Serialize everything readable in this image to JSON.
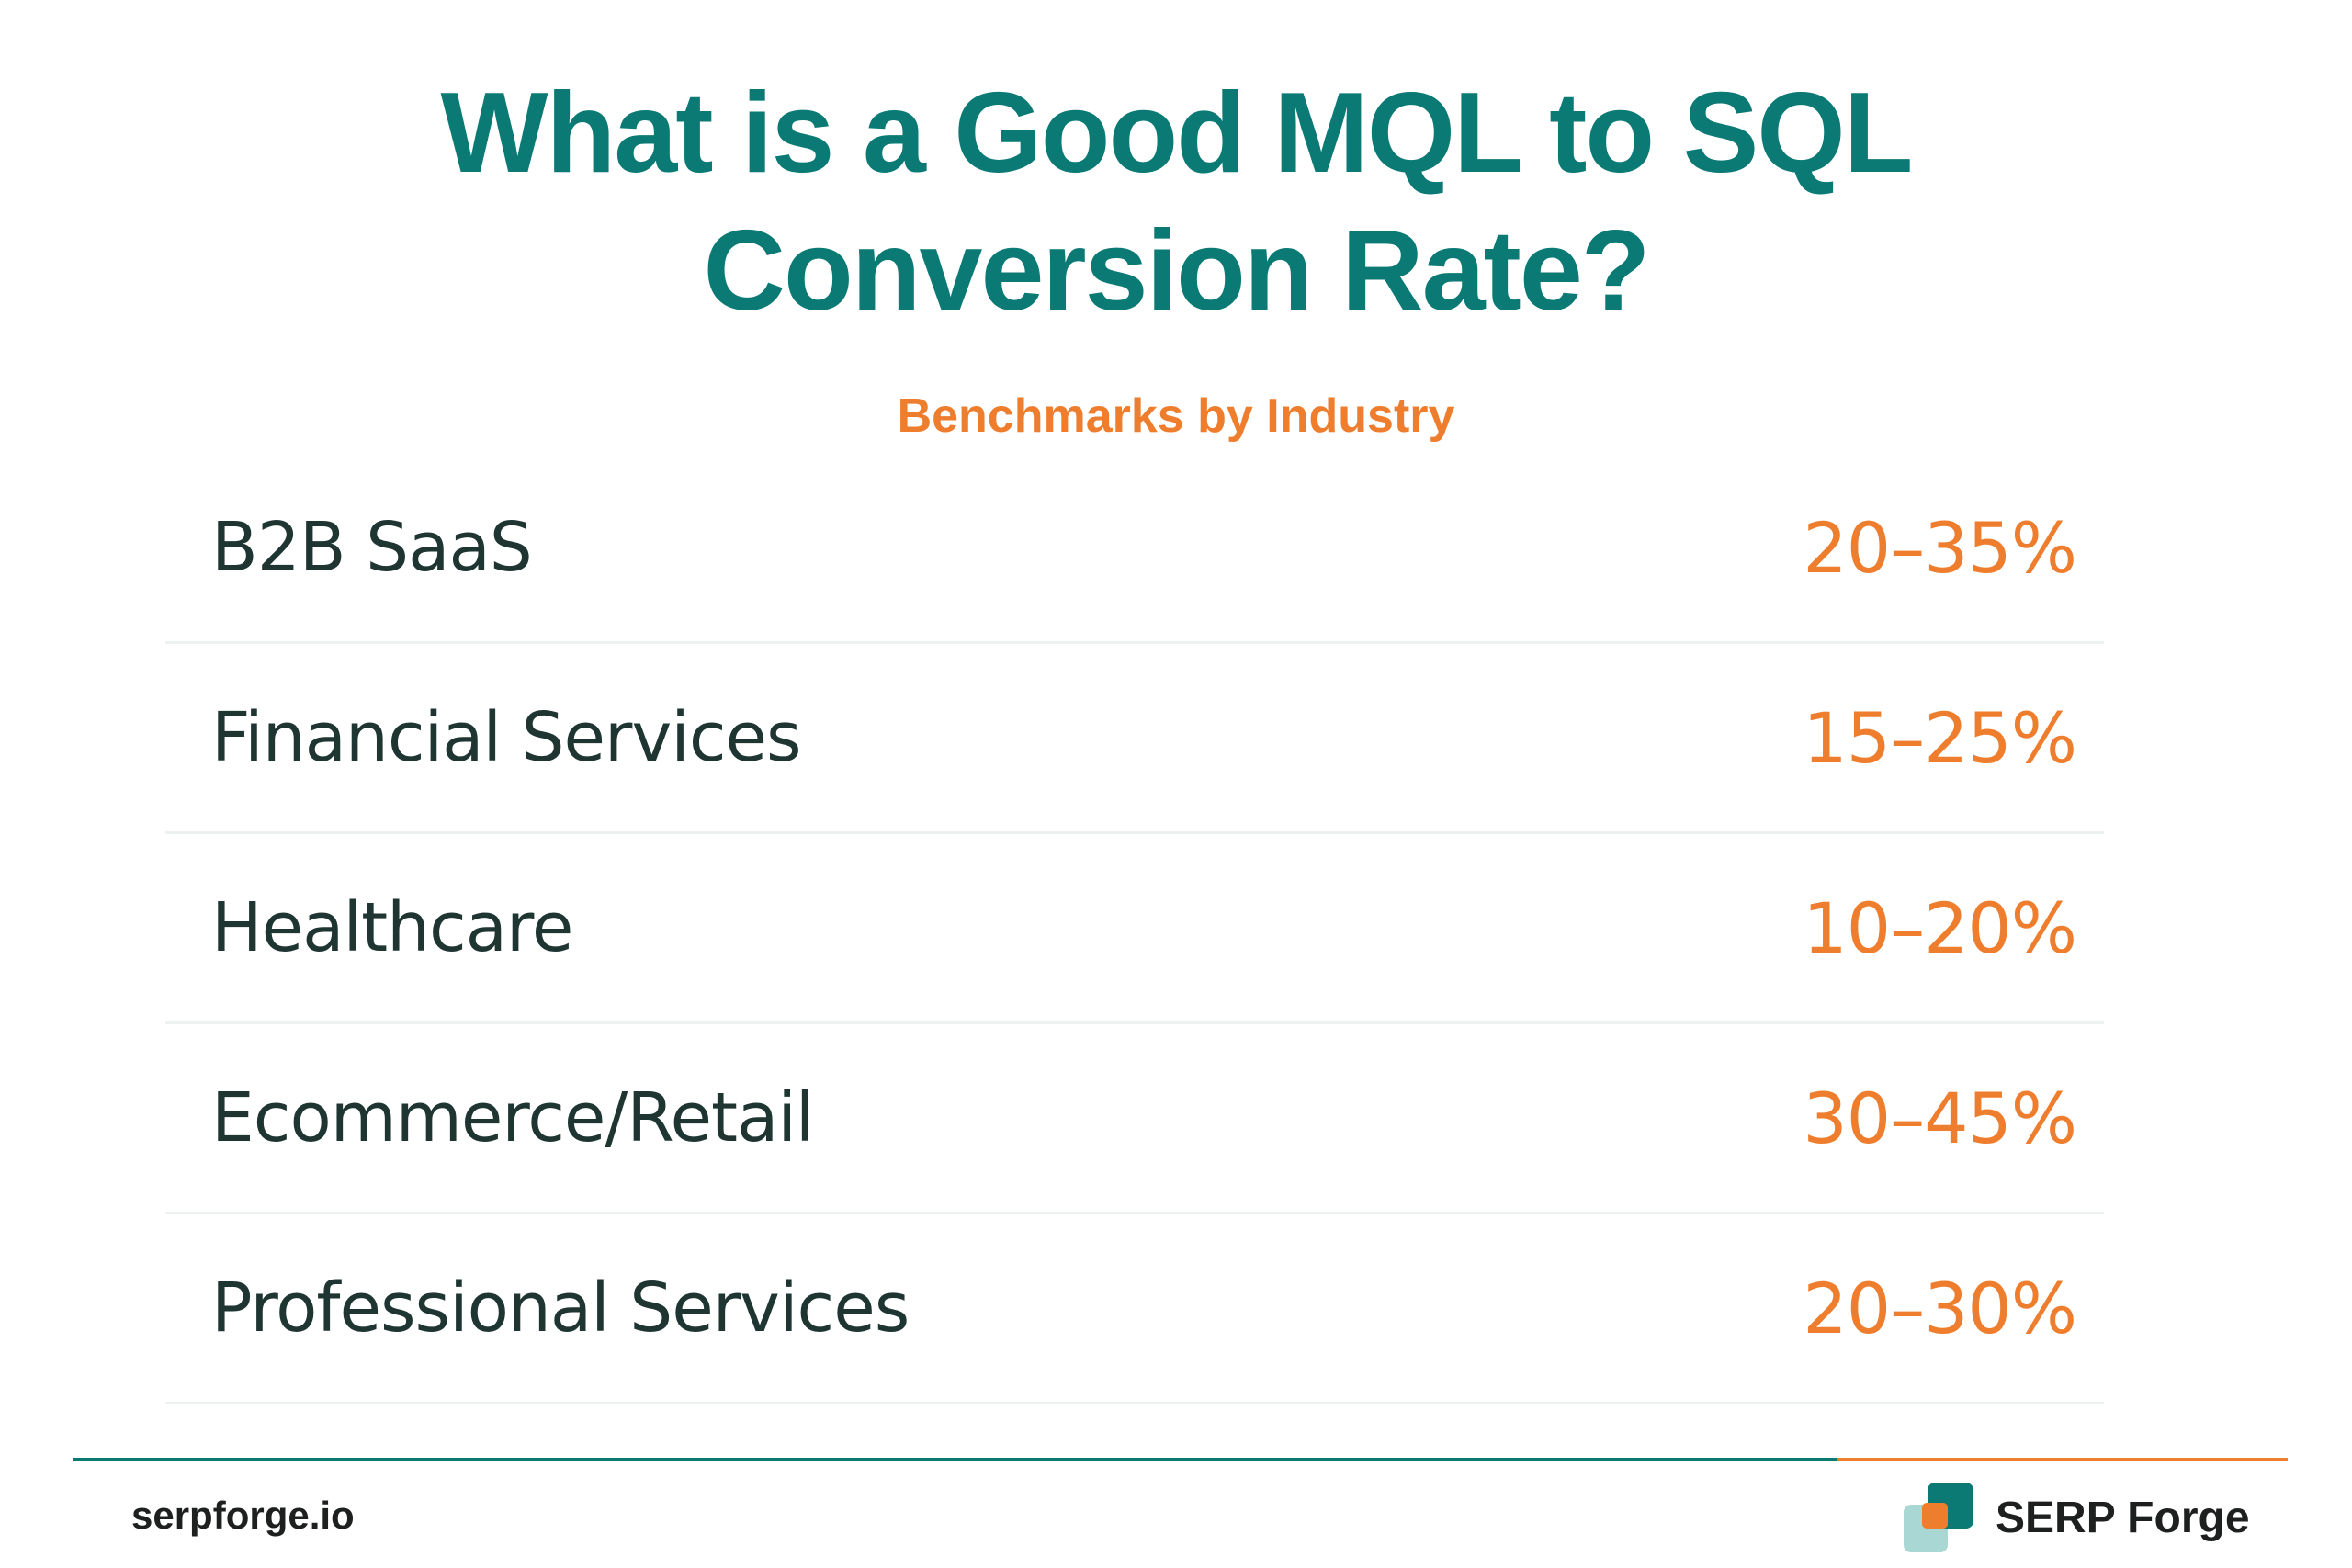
{
  "title_line1": "What is a Good MQL to SQL",
  "title_line2": "Conversion Rate?",
  "subtitle": "Benchmarks by Industry",
  "rows": [
    {
      "industry": "B2B SaaS",
      "rate": "20–35%"
    },
    {
      "industry": "Financial Services",
      "rate": "15–25%"
    },
    {
      "industry": "Healthcare",
      "rate": "10–20%"
    },
    {
      "industry": "Ecommerce/Retail",
      "rate": "30–45%"
    },
    {
      "industry": "Professional Services",
      "rate": "20–30%"
    }
  ],
  "footer": {
    "url": "serpforge.io",
    "brand": "SERP Forge",
    "logo_icon": "serp-forge-logo-icon"
  },
  "colors": {
    "teal": "#0b7a74",
    "orange": "#ee7e2e",
    "text_dark": "#1f3532"
  }
}
